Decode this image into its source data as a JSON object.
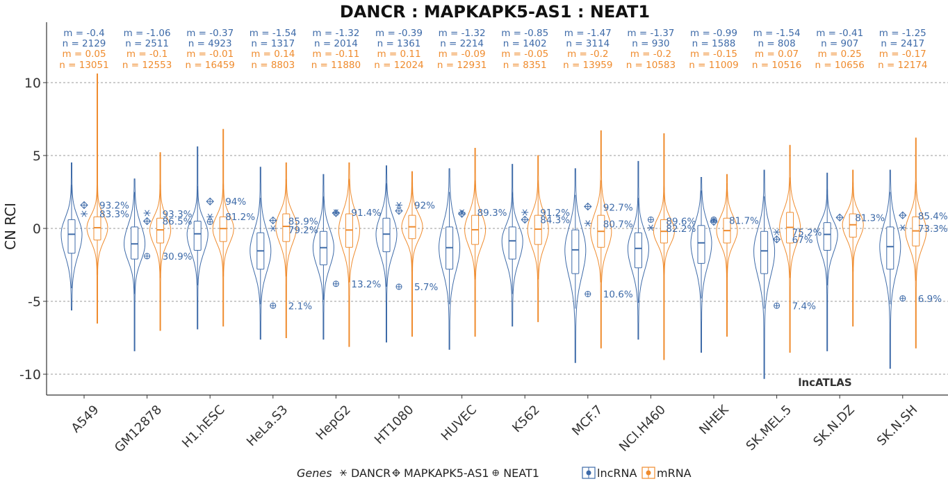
{
  "chart_data": {
    "type": "violin",
    "title": "DANCR : MAPKAPK5-AS1 : NEAT1",
    "xlabel": "",
    "ylabel": "CN RCI",
    "ylim": [
      -11,
      14
    ],
    "yticks": [
      -10,
      -5,
      0,
      5,
      10
    ],
    "ytick_labels": [
      "-10",
      "-5",
      "0",
      "5",
      "10"
    ],
    "grid": true,
    "watermark": "lncATLAS",
    "colors": {
      "lncRNA": "#3d6aa8",
      "mRNA": "#ef8b2d",
      "grid": "#9a9a9a",
      "axis": "#333333"
    },
    "legend": {
      "position": "bottom",
      "genes_title": "Genes",
      "genes": [
        {
          "symbol": "asterisk",
          "label": "DANCR"
        },
        {
          "symbol": "diamond-plus",
          "label": "MAPKAPK5-AS1"
        },
        {
          "symbol": "circle-plus",
          "label": "NEAT1"
        }
      ],
      "types": [
        {
          "name": "lncRNA",
          "color": "#3d6aa8"
        },
        {
          "name": "mRNA",
          "color": "#ef8b2d"
        }
      ]
    },
    "categories": [
      "A549",
      "GM12878",
      "H1.hESC",
      "HeLa.S3",
      "HepG2",
      "HT1080",
      "HUVEC",
      "K562",
      "MCF.7",
      "NCI.H460",
      "NHEK",
      "SK.MEL.5",
      "SK.N.DZ",
      "SK.N.SH"
    ],
    "series": [
      {
        "name": "lncRNA",
        "m_label": [
          "m = -0.4",
          "m = -1.06",
          "m = -0.37",
          "m = -1.54",
          "m = -1.32",
          "m = -0.39",
          "m = -1.32",
          "m = -0.85",
          "m = -1.47",
          "m = -1.37",
          "m = -0.99",
          "m = -1.54",
          "m = -0.41",
          "m = -1.25"
        ],
        "n_label": [
          "n = 2129",
          "n = 2511",
          "n = 4923",
          "n = 1317",
          "n = 2014",
          "n = 1361",
          "n = 2214",
          "n = 1402",
          "n = 3114",
          "n = 930",
          "n = 1588",
          "n = 808",
          "n = 907",
          "n = 2417"
        ],
        "median": [
          -0.4,
          -1.06,
          -0.37,
          -1.54,
          -1.32,
          -0.39,
          -1.32,
          -0.85,
          -1.47,
          -1.37,
          -0.99,
          -1.54,
          -0.41,
          -1.25
        ],
        "q1": [
          -1.7,
          -2.1,
          -1.5,
          -2.8,
          -2.5,
          -1.6,
          -2.8,
          -2.1,
          -3.1,
          -2.7,
          -2.4,
          -3.1,
          -1.5,
          -2.8
        ],
        "q3": [
          0.6,
          0.1,
          0.5,
          -0.3,
          -0.2,
          0.7,
          0.1,
          0.1,
          -0.1,
          -0.3,
          0.2,
          -0.2,
          0.4,
          0.1
        ],
        "min": [
          -5.6,
          -8.4,
          -6.9,
          -7.6,
          -7.6,
          -7.8,
          -8.3,
          -6.7,
          -9.2,
          -7.6,
          -8.5,
          -10.3,
          -8.4,
          -9.6
        ],
        "max": [
          4.5,
          3.4,
          5.6,
          4.2,
          3.7,
          4.3,
          4.1,
          4.4,
          4.1,
          4.6,
          3.5,
          4.0,
          3.8,
          4.0
        ]
      },
      {
        "name": "mRNA",
        "m_label": [
          "m = 0.05",
          "m = -0.1",
          "m = -0.01",
          "m = 0.14",
          "m = -0.11",
          "m = 0.11",
          "m = -0.09",
          "m = -0.05",
          "m = -0.2",
          "m = -0.2",
          "m = -0.15",
          "m = 0.07",
          "m = 0.25",
          "m = -0.17"
        ],
        "n_label": [
          "n = 13051",
          "n = 12553",
          "n = 16459",
          "n = 8803",
          "n = 11880",
          "n = 12024",
          "n = 12931",
          "n = 8351",
          "n = 13959",
          "n = 10583",
          "n = 11009",
          "n = 10516",
          "n = 10656",
          "n = 12174"
        ],
        "median": [
          0.05,
          -0.1,
          -0.01,
          0.14,
          -0.11,
          0.11,
          -0.09,
          -0.05,
          -0.2,
          -0.2,
          -0.15,
          0.07,
          0.25,
          -0.17
        ],
        "q1": [
          -0.8,
          -1.0,
          -0.9,
          -0.9,
          -1.3,
          -0.7,
          -1.1,
          -1.1,
          -1.3,
          -1.0,
          -1.0,
          -1.0,
          -0.6,
          -1.2
        ],
        "q3": [
          0.8,
          0.7,
          0.8,
          1.0,
          1.0,
          0.9,
          0.9,
          0.9,
          0.9,
          0.6,
          0.7,
          1.1,
          1.0,
          0.8
        ],
        "min": [
          -6.5,
          -7.0,
          -6.7,
          -7.5,
          -8.1,
          -7.4,
          -7.4,
          -6.4,
          -8.2,
          -9.0,
          -7.4,
          -8.5,
          -6.7,
          -8.2
        ],
        "max": [
          10.6,
          5.2,
          6.8,
          4.5,
          4.5,
          3.9,
          5.5,
          5.0,
          6.7,
          6.5,
          3.7,
          5.7,
          4.0,
          6.2
        ]
      }
    ],
    "genes": [
      {
        "name": "DANCR",
        "symbol": "asterisk",
        "values": [
          1.0,
          1.05,
          0.8,
          0.0,
          1.1,
          1.6,
          1.1,
          1.1,
          0.35,
          0.05,
          0.55,
          -0.25,
          null,
          0.05
        ],
        "percentile": [
          "83.3%",
          "93.3%",
          "81.2%",
          "79.2%",
          "91.4%",
          "92%",
          "89.3%",
          "91.2%",
          "80.7%",
          "82.2%",
          "81.7%",
          "75.2%",
          null,
          "73.3%"
        ],
        "label_y": [
          1.0,
          1.0,
          0.8,
          -0.1,
          1.1,
          1.6,
          1.1,
          1.1,
          0.3,
          -0.0,
          0.55,
          -0.25,
          null,
          0.0
        ]
      },
      {
        "name": "MAPKAPK5-AS1",
        "symbol": "diamond-plus",
        "values": [
          1.6,
          0.5,
          1.85,
          0.55,
          1.05,
          1.2,
          1.0,
          0.6,
          1.5,
          null,
          0.45,
          -0.75,
          0.75,
          0.9
        ],
        "percentile": [
          "93.2%",
          "86.5%",
          "94%",
          "85.9%",
          null,
          null,
          null,
          "84.3%",
          "92.7%",
          null,
          null,
          "67%",
          "81.3%",
          "85.4%"
        ],
        "label_y": [
          1.6,
          0.5,
          1.85,
          0.5,
          null,
          null,
          null,
          0.6,
          1.45,
          null,
          null,
          -0.75,
          0.75,
          0.85
        ]
      },
      {
        "name": "NEAT1",
        "symbol": "circle-plus",
        "values": [
          null,
          -1.9,
          0.45,
          -5.3,
          -3.8,
          -4.0,
          null,
          null,
          -4.5,
          0.6,
          0.6,
          -5.3,
          null,
          -4.8
        ],
        "percentile": [
          null,
          "30.9%",
          null,
          "2.1%",
          "13.2%",
          "5.7%",
          null,
          null,
          "10.6%",
          "89.6%",
          null,
          "7.4%",
          null,
          "6.9%"
        ],
        "label_y": [
          null,
          -1.9,
          null,
          -5.3,
          -3.8,
          -4.0,
          null,
          null,
          -4.5,
          0.5,
          null,
          -5.3,
          null,
          -4.8
        ]
      }
    ]
  }
}
